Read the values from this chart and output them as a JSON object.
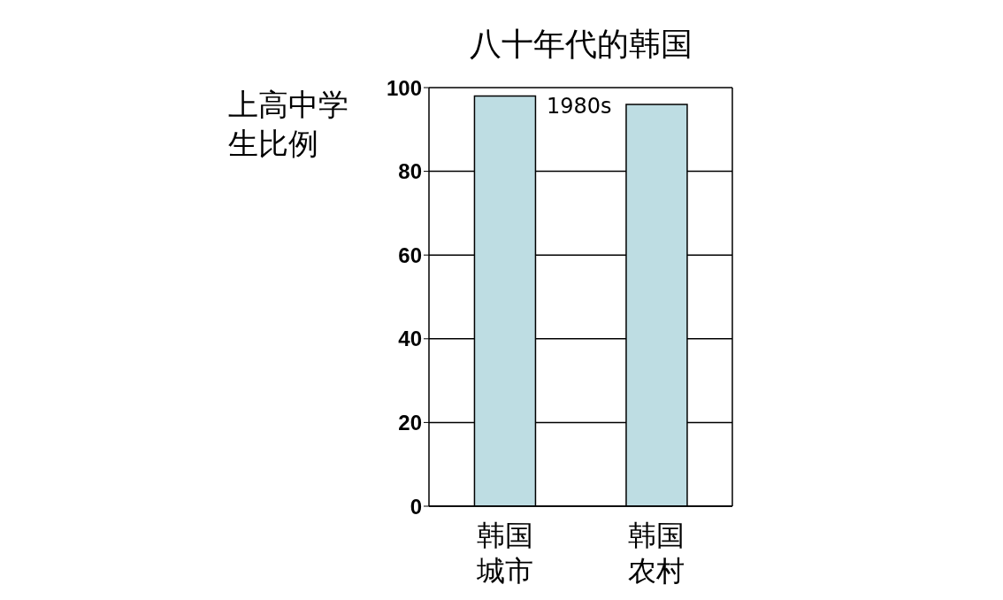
{
  "chart_data": {
    "type": "bar",
    "title": "八十年代的韩国",
    "ylabel": "上高中学生比例",
    "categories": [
      "韩国城市",
      "韩国农村"
    ],
    "values": [
      98,
      96
    ],
    "color": "#bedde3",
    "ylim": [
      0,
      100
    ],
    "yticks": [
      0,
      20,
      40,
      60,
      80,
      100
    ],
    "grid": "y",
    "annotations": [
      "1980s"
    ]
  }
}
